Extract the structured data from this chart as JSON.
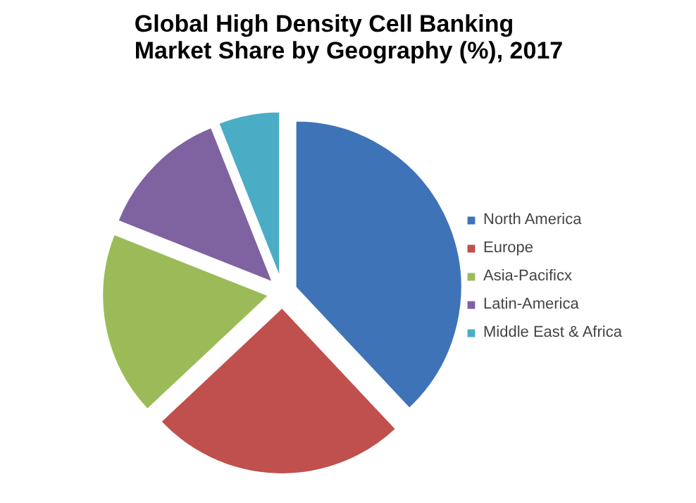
{
  "chart_data": {
    "type": "pie",
    "title": "Global High Density Cell Banking Market Share by Geography (%), 2017",
    "categories": [
      "North America",
      "Europe",
      "Asia-Pacificx",
      "Latin-America",
      "Middle East & Africa"
    ],
    "values": [
      38,
      25,
      18,
      13,
      6
    ],
    "colors": [
      "#3f73b8",
      "#c0504d",
      "#9bbb59",
      "#7f63a1",
      "#4bacc6"
    ],
    "legend": "right"
  }
}
